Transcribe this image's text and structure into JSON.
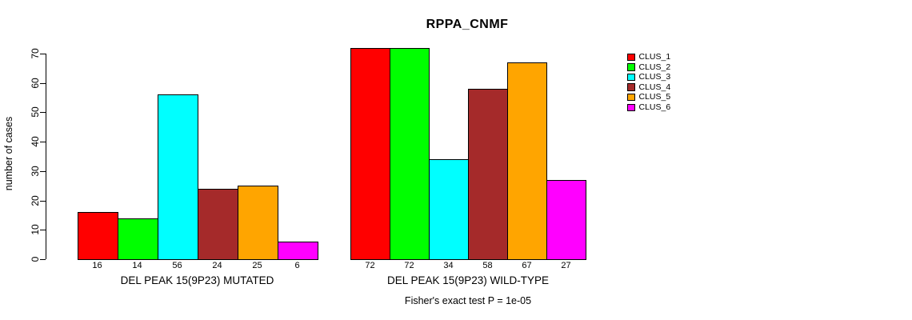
{
  "chart_data": {
    "type": "bar",
    "title": "RPPA_CNMF",
    "ylabel": "number of cases",
    "xlabel": "",
    "ylim": [
      0,
      70
    ],
    "yticks": [
      0,
      10,
      20,
      30,
      40,
      50,
      60,
      70
    ],
    "grid": false,
    "legend_position": "right-outside",
    "groups": [
      {
        "label": "DEL PEAK 15(9P23) MUTATED",
        "values": [
          16,
          14,
          56,
          24,
          25,
          6
        ]
      },
      {
        "label": "DEL PEAK 15(9P23) WILD-TYPE",
        "values": [
          72,
          72,
          34,
          58,
          67,
          27
        ]
      }
    ],
    "legend": [
      {
        "label": "CLUS_1",
        "color": "#FF0000"
      },
      {
        "label": "CLUS_2",
        "color": "#00FF00"
      },
      {
        "label": "CLUS_3",
        "color": "#00FFFF"
      },
      {
        "label": "CLUS_4",
        "color": "#A52A2A"
      },
      {
        "label": "CLUS_5",
        "color": "#FFA500"
      },
      {
        "label": "CLUS_6",
        "color": "#FF00FF"
      }
    ],
    "annotation": "Fisher's exact test P = 1e-05"
  }
}
